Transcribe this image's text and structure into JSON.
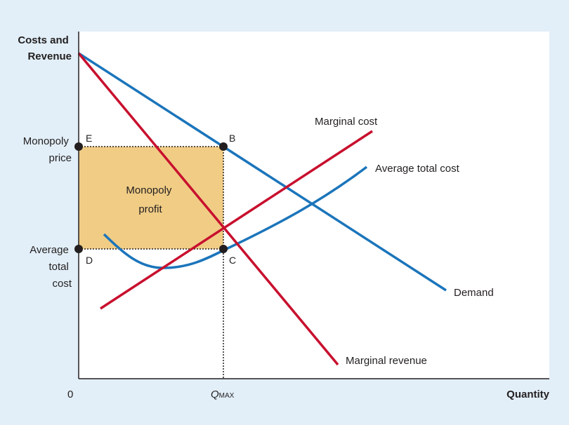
{
  "y_axis_title": [
    "Costs and",
    "Revenue"
  ],
  "x_axis_title": "Quantity",
  "origin_label": "0",
  "q_max": {
    "base": "Q",
    "sub": "MAX"
  },
  "y_labels": {
    "monopoly_price": [
      "Monopoly",
      "price"
    ],
    "average_total_cost": [
      "Average",
      "total",
      "cost"
    ]
  },
  "point_labels": {
    "e": "E",
    "b": "B",
    "d": "D",
    "c": "C"
  },
  "profit_label": [
    "Monopoly",
    "profit"
  ],
  "curve_labels": {
    "marginal_cost": "Marginal cost",
    "average_total_cost": "Average total cost",
    "demand": "Demand",
    "marginal_revenue": "Marginal revenue"
  },
  "colors": {
    "background": "#e2eff8",
    "plot_bg": "#ffffff",
    "blue_curve": "#1b75bb",
    "red_curve": "#c8102e",
    "profit_fill": "#f0cc85",
    "point": "#231f20"
  }
}
